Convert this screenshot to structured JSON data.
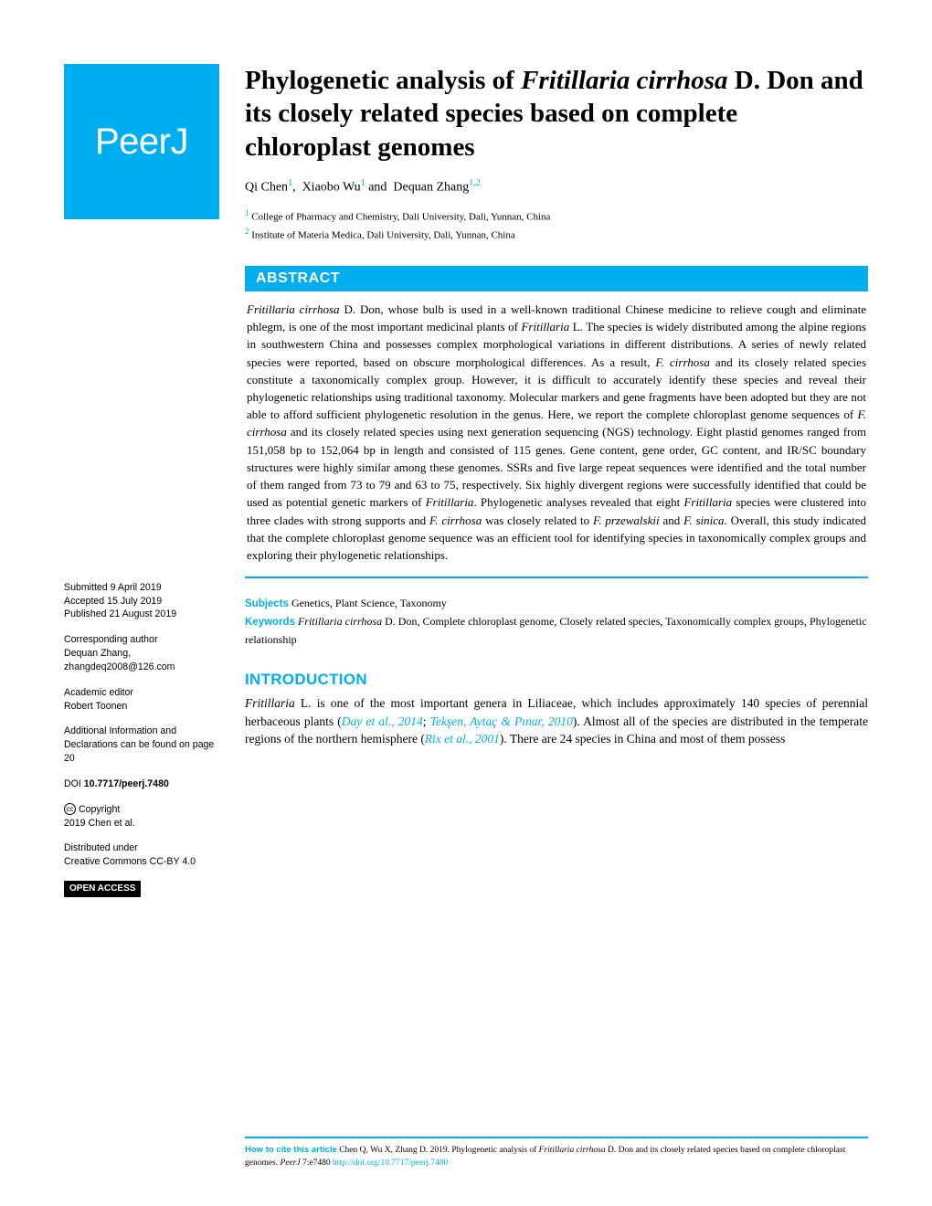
{
  "journal": {
    "logo": "PeerJ"
  },
  "title": {
    "pre": "Phylogenetic analysis of ",
    "italic1": "Fritillaria cirrhosa",
    "post": " D. Don and its closely related species based on complete chloroplast genomes"
  },
  "authors": {
    "a1": "Qi Chen",
    "a1_sup": "1",
    "a2": "Xiaobo Wu",
    "a2_sup": "1",
    "a3": "Dequan Zhang",
    "a3_sup": "1,2"
  },
  "affiliations": {
    "aff1_sup": "1",
    "aff1": " College of Pharmacy and Chemistry, Dali University, Dali, Yunnan, China",
    "aff2_sup": "2",
    "aff2": " Institute of Materia Medica, Dali University, Dali, Yunnan, China"
  },
  "abstract": {
    "header": "ABSTRACT",
    "s1_i1": "Fritillaria cirrhosa",
    "s1_t1": " D. Don, whose bulb is used in a well-known traditional Chinese medicine to relieve cough and eliminate phlegm, is one of the most important medicinal plants of ",
    "s1_i2": "Fritillaria",
    "s1_t2": " L. The species is widely distributed among the alpine regions in southwestern China and possesses complex morphological variations in different distributions. A series of newly related species were reported, based on obscure morphological differences. As a result, ",
    "s1_i3": "F. cirrhosa",
    "s1_t3": " and its closely related species constitute a taxonomically complex group. However, it is difficult to accurately identify these species and reveal their phylogenetic relationships using traditional taxonomy. Molecular markers and gene fragments have been adopted but they are not able to afford sufficient phylogenetic resolution in the genus. Here, we report the complete chloroplast genome sequences of ",
    "s1_i4": "F. cirrhosa",
    "s1_t4": " and its closely related species using next generation sequencing (NGS) technology. Eight plastid genomes ranged from 151,058 bp to 152,064 bp in length and consisted of 115 genes. Gene content, gene order, GC content, and IR/SC boundary structures were highly similar among these genomes. SSRs and five large repeat sequences were identified and the total number of them ranged from 73 to 79 and 63 to 75, respectively. Six highly divergent regions were successfully identified that could be used as potential genetic markers of ",
    "s1_i5": "Fritillaria",
    "s1_t5": ". Phylogenetic analyses revealed that eight ",
    "s1_i6": "Fritillaria",
    "s1_t6": " species were clustered into three clades with strong supports and ",
    "s1_i7": "F. cirrhosa",
    "s1_t7": " was closely related to ",
    "s1_i8": "F. przewalskii",
    "s1_t8": " and ",
    "s1_i9": "F. sinica",
    "s1_t9": ". Overall, this study indicated that the complete chloroplast genome sequence was an efficient tool for identifying species in taxonomically complex groups and exploring their phylogenetic relationships."
  },
  "subjects": {
    "label": "Subjects",
    "text": " Genetics, Plant Science, Taxonomy"
  },
  "keywords": {
    "label": "Keywords",
    "italic": " Fritillaria cirrhosa",
    "text": " D. Don, Complete chloroplast genome, Closely related species, Taxonomically complex groups, Phylogenetic relationship"
  },
  "intro": {
    "heading": "INTRODUCTION",
    "i1": "Fritillaria",
    "t1": " L. is one of the most important genera in Liliaceae, which includes approximately 140 species of perennial herbaceous plants (",
    "c1": "Day et al., 2014",
    "t2": "; ",
    "c2": "Tekşen, Aytaç & Pınar, 2010",
    "t3": "). Almost all of the species are distributed in the temperate regions of the northern hemisphere (",
    "c3": "Rix et al., 2001",
    "t4": "). There are 24 species in China and most of them possess"
  },
  "sidebar": {
    "submitted_label": "Submitted",
    "submitted": " 9 April 2019",
    "accepted_label": "Accepted",
    "accepted": " 15 July 2019",
    "published_label": "Published",
    "published": " 21 August 2019",
    "corresponding_label": "Corresponding author",
    "corresponding_name": "Dequan Zhang,",
    "corresponding_email": "zhangdeq2008@126.com",
    "editor_label": "Academic editor",
    "editor_name": "Robert Toonen",
    "additional_info": "Additional Information and Declarations can be found on page 20",
    "doi_label": "DOI",
    "doi": " 10.7717/peerj.7480",
    "copyright_label": " Copyright",
    "copyright_text": "2019 Chen et al.",
    "license1": "Distributed under",
    "license2": "Creative Commons CC-BY 4.0",
    "open_access": "OPEN ACCESS"
  },
  "citation": {
    "label": "How to cite this article",
    "t1": " Chen Q, Wu X, Zhang D. 2019. Phylogenetic analysis of ",
    "i1": "Fritillaria cirrhosa",
    "t2": " D. Don and its closely related species based on complete chloroplast genomes. ",
    "i2": "PeerJ",
    "t3": " 7:e7480 ",
    "link": "http://doi.org/10.7717/peerj.7480"
  }
}
